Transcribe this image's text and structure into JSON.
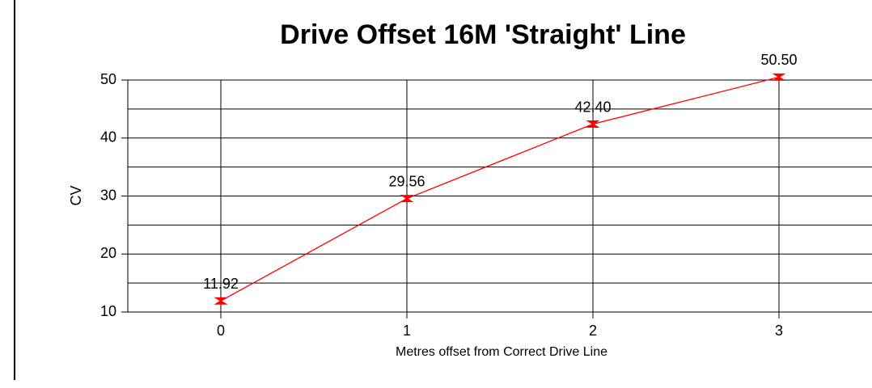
{
  "chart_data": {
    "type": "line",
    "title": "Drive Offset 16M 'Straight' Line",
    "x_label": "Metres offset from Correct Drive Line",
    "y_label": "CV",
    "x": [
      0,
      1,
      2,
      3
    ],
    "series": [
      {
        "name": "CV",
        "color": "#ff0000",
        "values": [
          11.92,
          29.56,
          42.4,
          50.5
        ],
        "value_labels": [
          "11.92",
          "29.56",
          "42.40",
          "50.50"
        ]
      }
    ],
    "xlim": [
      -0.5,
      3.5
    ],
    "xticks": [
      0,
      1,
      2,
      3
    ],
    "ylim": [
      10,
      50
    ],
    "yticks": [
      10,
      20,
      30,
      40,
      50
    ],
    "minor_yticks": [
      15,
      25,
      35,
      45
    ],
    "grid": true
  }
}
